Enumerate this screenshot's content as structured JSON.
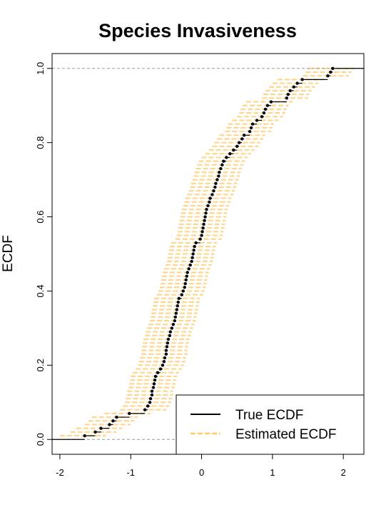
{
  "chart_data": {
    "type": "ecdf",
    "title": "Species Invasiveness",
    "y_label": "ECDF",
    "xlim": [
      -2.11,
      2.29
    ],
    "ylim": [
      -0.04,
      1.04
    ],
    "xticks": [
      -2,
      -1,
      0,
      1,
      2
    ],
    "yticks": [
      {
        "value": 0,
        "label": "0.0"
      },
      {
        "value": 0.2,
        "label": "0.2"
      },
      {
        "value": 0.4,
        "label": "0.4"
      },
      {
        "value": 0.6,
        "label": "0.6"
      },
      {
        "value": 0.8,
        "label": "0.8"
      },
      {
        "value": 1,
        "label": "1.0"
      }
    ],
    "hlines": [
      0,
      1
    ],
    "legend": "bottomright",
    "series": [
      {
        "name": "True ECDF",
        "color": "#000000",
        "x": [
          -1.65,
          -1.5,
          -1.42,
          -1.3,
          -1.25,
          -1.2,
          -1.02,
          -0.8,
          -0.76,
          -0.73,
          -0.72,
          -0.7,
          -0.7,
          -0.68,
          -0.67,
          -0.66,
          -0.65,
          -0.62,
          -0.58,
          -0.55,
          -0.53,
          -0.52,
          -0.5,
          -0.5,
          -0.49,
          -0.48,
          -0.47,
          -0.45,
          -0.44,
          -0.42,
          -0.4,
          -0.38,
          -0.37,
          -0.36,
          -0.35,
          -0.34,
          -0.33,
          -0.32,
          -0.28,
          -0.26,
          -0.24,
          -0.23,
          -0.22,
          -0.21,
          -0.2,
          -0.18,
          -0.16,
          -0.14,
          -0.13,
          -0.12,
          -0.11,
          -0.1,
          -0.08,
          -0.02,
          0,
          0.01,
          0.02,
          0.03,
          0.04,
          0.05,
          0.06,
          0.07,
          0.09,
          0.11,
          0.12,
          0.15,
          0.17,
          0.19,
          0.2,
          0.22,
          0.24,
          0.25,
          0.27,
          0.29,
          0.31,
          0.35,
          0.4,
          0.45,
          0.5,
          0.53,
          0.57,
          0.6,
          0.68,
          0.7,
          0.72,
          0.78,
          0.85,
          0.88,
          0.9,
          0.93,
          0.98,
          1.2,
          1.22,
          1.25,
          1.3,
          1.35,
          1.42,
          1.78,
          1.82,
          1.85
        ],
        "values": [
          0.01,
          0.02,
          0.03,
          0.04,
          0.05,
          0.06,
          0.07,
          0.08,
          0.09,
          0.1,
          0.11,
          0.12,
          0.13,
          0.14,
          0.15,
          0.16,
          0.17,
          0.18,
          0.19,
          0.2,
          0.21,
          0.22,
          0.23,
          0.24,
          0.25,
          0.26,
          0.27,
          0.28,
          0.29,
          0.3,
          0.31,
          0.32,
          0.33,
          0.34,
          0.35,
          0.36,
          0.37,
          0.38,
          0.39,
          0.4,
          0.41,
          0.42,
          0.43,
          0.44,
          0.45,
          0.46,
          0.47,
          0.48,
          0.49,
          0.5,
          0.51,
          0.52,
          0.53,
          0.54,
          0.55,
          0.56,
          0.57,
          0.58,
          0.59,
          0.6,
          0.61,
          0.62,
          0.63,
          0.64,
          0.65,
          0.66,
          0.67,
          0.68,
          0.69,
          0.7,
          0.71,
          0.72,
          0.73,
          0.74,
          0.75,
          0.76,
          0.77,
          0.78,
          0.79,
          0.8,
          0.81,
          0.82,
          0.83,
          0.84,
          0.85,
          0.86,
          0.87,
          0.88,
          0.89,
          0.9,
          0.91,
          0.92,
          0.93,
          0.94,
          0.95,
          0.96,
          0.97,
          0.98,
          0.99,
          1
        ]
      },
      {
        "name": "Estimated ECDF",
        "color": "#ffc966",
        "x_low": [
          -2,
          -1.85,
          -1.77,
          -1.65,
          -1.6,
          -1.55,
          -1.37,
          -1.15,
          -1.11,
          -1.08,
          -1.07,
          -1.05,
          -1.05,
          -1.03,
          -1.02,
          -1.01,
          -1,
          -0.97,
          -0.93,
          -0.9,
          -0.88,
          -0.87,
          -0.85,
          -0.85,
          -0.84,
          -0.83,
          -0.82,
          -0.8,
          -0.79,
          -0.77,
          -0.75,
          -0.73,
          -0.72,
          -0.71,
          -0.7,
          -0.69,
          -0.68,
          -0.67,
          -0.63,
          -0.61,
          -0.59,
          -0.58,
          -0.57,
          -0.56,
          -0.55,
          -0.53,
          -0.51,
          -0.49,
          -0.48,
          -0.47,
          -0.46,
          -0.45,
          -0.43,
          -0.37,
          -0.35,
          -0.34,
          -0.33,
          -0.32,
          -0.31,
          -0.3,
          -0.29,
          -0.28,
          -0.26,
          -0.24,
          -0.23,
          -0.2,
          -0.18,
          -0.16,
          -0.15,
          -0.13,
          -0.11,
          -0.1,
          -0.08,
          -0.06,
          -0.04,
          0,
          0.05,
          0.1,
          0.15,
          0.18,
          0.22,
          0.25,
          0.33,
          0.35,
          0.37,
          0.43,
          0.5,
          0.53,
          0.55,
          0.58,
          0.63,
          0.85,
          0.87,
          0.9,
          0.95,
          1,
          1.07,
          1.43,
          1.47,
          1.5
        ],
        "x_high": [
          -1.35,
          -1.2,
          -1.12,
          -1,
          -0.95,
          -0.9,
          -0.72,
          -0.5,
          -0.46,
          -0.43,
          -0.42,
          -0.4,
          -0.4,
          -0.38,
          -0.37,
          -0.36,
          -0.35,
          -0.32,
          -0.28,
          -0.25,
          -0.23,
          -0.22,
          -0.2,
          -0.2,
          -0.19,
          -0.18,
          -0.17,
          -0.15,
          -0.14,
          -0.12,
          -0.1,
          -0.08,
          -0.07,
          -0.06,
          -0.05,
          -0.04,
          -0.03,
          -0.02,
          0.02,
          0.04,
          0.06,
          0.07,
          0.08,
          0.09,
          0.1,
          0.12,
          0.14,
          0.16,
          0.17,
          0.18,
          0.19,
          0.2,
          0.22,
          0.28,
          0.3,
          0.31,
          0.32,
          0.33,
          0.34,
          0.35,
          0.36,
          0.37,
          0.39,
          0.41,
          0.42,
          0.45,
          0.47,
          0.49,
          0.5,
          0.52,
          0.54,
          0.55,
          0.57,
          0.59,
          0.61,
          0.65,
          0.7,
          0.75,
          0.8,
          0.83,
          0.87,
          0.9,
          0.98,
          1,
          1.02,
          1.08,
          1.15,
          1.18,
          1.2,
          1.23,
          1.28,
          1.5,
          1.52,
          1.55,
          1.6,
          1.65,
          1.72,
          2.08,
          2.12,
          2.15
        ]
      }
    ]
  }
}
